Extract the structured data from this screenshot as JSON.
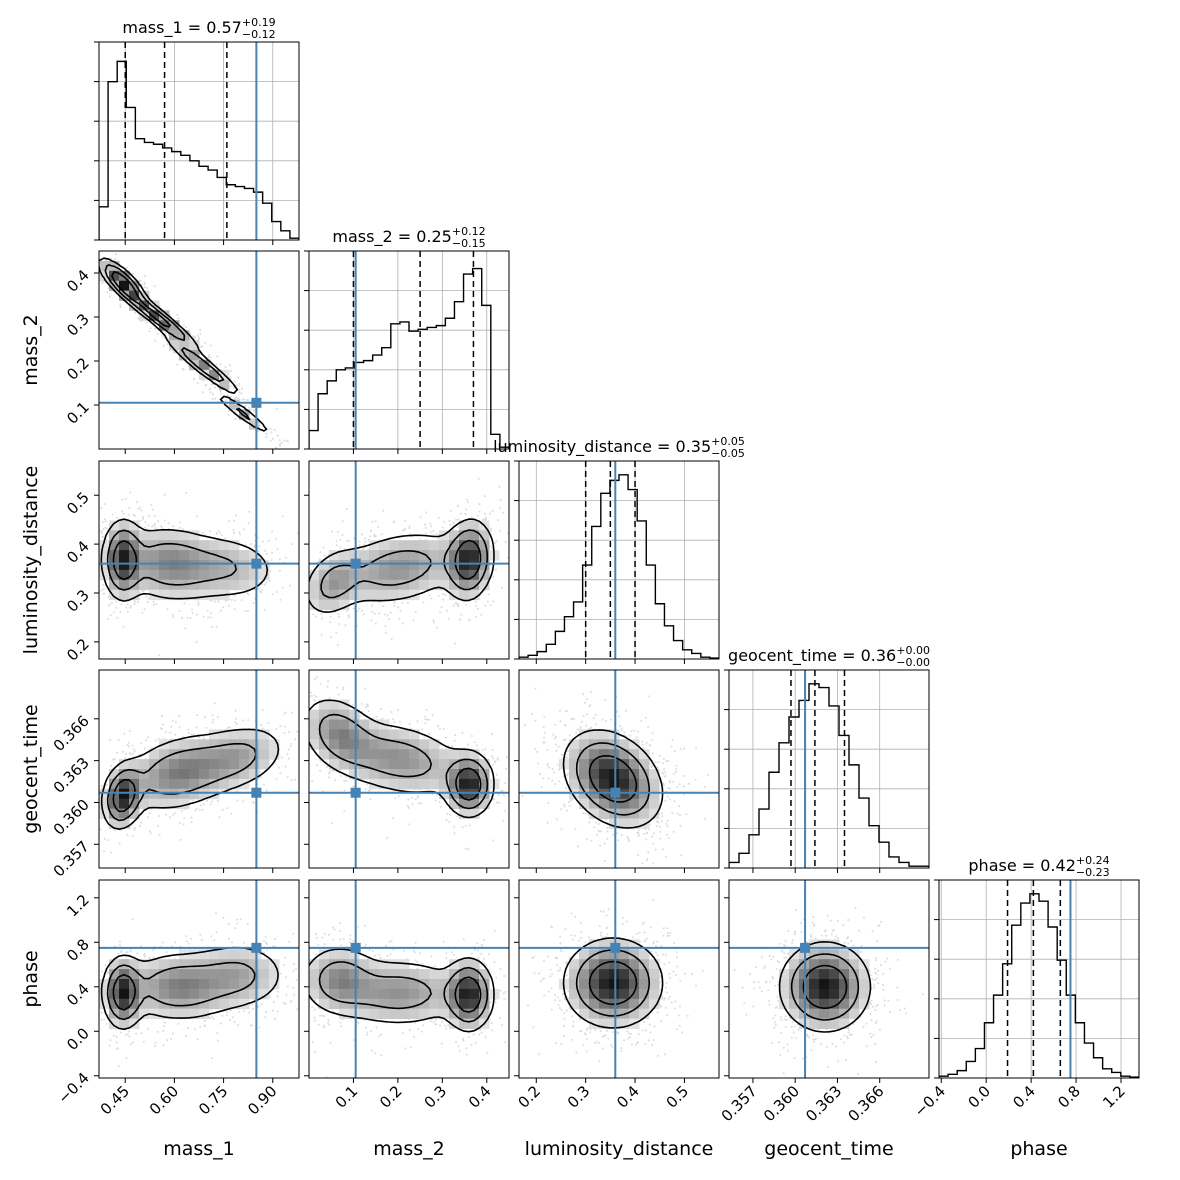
{
  "chart_data": {
    "type": "corner",
    "params": [
      "mass_1",
      "mass_2",
      "luminosity_distance",
      "geocent_time",
      "phase"
    ],
    "axis_labels": [
      "mass_1",
      "mass_2",
      "luminosity_distance",
      "geocent_time",
      "phase"
    ],
    "ranges": [
      [
        0.37,
        0.98
      ],
      [
        0.0,
        0.45
      ],
      [
        0.165,
        0.57
      ],
      [
        0.3553,
        0.3695
      ],
      [
        -0.42,
        1.36
      ]
    ],
    "ticks": [
      {
        "values": [
          0.45,
          0.6,
          0.75,
          0.9
        ],
        "labels": [
          "0.45",
          "0.60",
          "0.75",
          "0.90"
        ]
      },
      {
        "values": [
          0.1,
          0.2,
          0.3,
          0.4
        ],
        "labels": [
          "0.1",
          "0.2",
          "0.3",
          "0.4"
        ]
      },
      {
        "values": [
          0.2,
          0.3,
          0.4,
          0.5
        ],
        "labels": [
          "0.2",
          "0.3",
          "0.4",
          "0.5"
        ]
      },
      {
        "values": [
          0.357,
          0.36,
          0.363,
          0.366
        ],
        "labels": [
          "0.357",
          "0.360",
          "0.363",
          "0.366"
        ]
      },
      {
        "values": [
          -0.4,
          0.0,
          0.4,
          0.8,
          1.2
        ],
        "labels": [
          "−0.4",
          "0.0",
          "0.4",
          "0.8",
          "1.2"
        ]
      }
    ],
    "truths": [
      0.85,
      0.105,
      0.36,
      0.3607,
      0.75
    ],
    "titles": [
      {
        "text": "mass_1 = 0.57",
        "plus": "+0.19",
        "minus": "−0.12"
      },
      {
        "text": "mass_2 = 0.25",
        "plus": "+0.12",
        "minus": "−0.15"
      },
      {
        "text": "luminosity_distance = 0.35",
        "plus": "+0.05",
        "minus": "−0.05"
      },
      {
        "text": "geocent_time = 0.36",
        "plus": "+0.00",
        "minus": "−0.00"
      },
      {
        "text": "phase = 0.42",
        "plus": "+0.24",
        "minus": "−0.23"
      }
    ],
    "quantiles": [
      [
        0.45,
        0.57,
        0.76
      ],
      [
        0.1,
        0.25,
        0.37
      ],
      [
        0.3,
        0.35,
        0.4
      ],
      [
        0.3597,
        0.3614,
        0.3635
      ],
      [
        0.19,
        0.42,
        0.66
      ]
    ],
    "histograms": [
      {
        "edges_min": 0.37,
        "edges_max": 0.98,
        "counts": [
          0.18,
          0.86,
          0.97,
          0.72,
          0.55,
          0.53,
          0.52,
          0.5,
          0.48,
          0.46,
          0.43,
          0.4,
          0.38,
          0.34,
          0.3,
          0.29,
          0.28,
          0.26,
          0.2,
          0.1,
          0.05,
          0.01
        ]
      },
      {
        "edges_min": 0.0,
        "edges_max": 0.45,
        "counts": [
          0.1,
          0.3,
          0.37,
          0.43,
          0.44,
          0.47,
          0.48,
          0.51,
          0.55,
          0.68,
          0.69,
          0.64,
          0.65,
          0.66,
          0.67,
          0.71,
          0.8,
          0.95,
          0.98,
          0.78,
          0.08,
          0.01
        ]
      },
      {
        "edges_min": 0.165,
        "edges_max": 0.57,
        "counts": [
          0.01,
          0.02,
          0.04,
          0.08,
          0.15,
          0.23,
          0.31,
          0.51,
          0.72,
          0.9,
          0.97,
          1.0,
          0.92,
          0.75,
          0.51,
          0.3,
          0.18,
          0.1,
          0.05,
          0.03,
          0.01,
          0.005
        ]
      },
      {
        "edges_min": 0.3553,
        "edges_max": 0.3695,
        "counts": [
          0.03,
          0.08,
          0.18,
          0.32,
          0.52,
          0.68,
          0.82,
          0.91,
          1.0,
          0.98,
          0.88,
          0.72,
          0.56,
          0.38,
          0.23,
          0.14,
          0.06,
          0.03,
          0.01,
          0.01
        ]
      },
      {
        "edges_min": -0.42,
        "edges_max": 1.36,
        "counts": [
          0.01,
          0.02,
          0.04,
          0.09,
          0.16,
          0.3,
          0.45,
          0.62,
          0.83,
          0.95,
          1.0,
          0.96,
          0.82,
          0.64,
          0.45,
          0.3,
          0.19,
          0.11,
          0.05,
          0.03,
          0.01,
          0.005
        ]
      }
    ]
  }
}
